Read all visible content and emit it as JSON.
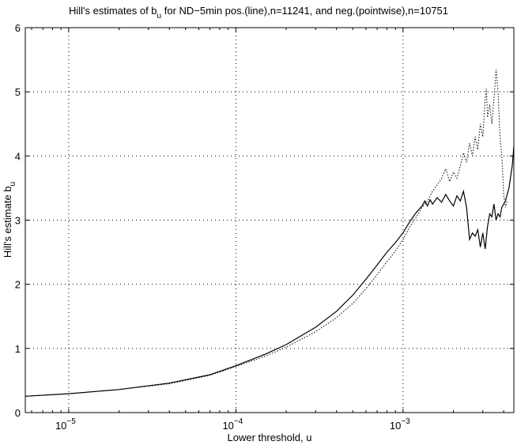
{
  "chart_data": {
    "type": "line",
    "title": {
      "prefix": "Hill's estimates of b",
      "subscript": "u",
      "suffix": " for ND−5min pos.(line),n=11241, and neg.(pointwise),n=10751"
    },
    "xlabel": "Lower threshold, u",
    "ylabel": {
      "main": "Hill's estimate b",
      "subscript": "u"
    },
    "x_scale": "log",
    "xlim": [
      5.5e-06,
      0.0046
    ],
    "ylim": [
      0,
      6
    ],
    "xticks": [
      {
        "value": 1e-05,
        "base": "10",
        "exponent": "−5"
      },
      {
        "value": 0.0001,
        "base": "10",
        "exponent": "−4"
      },
      {
        "value": 0.001,
        "base": "10",
        "exponent": "−3"
      }
    ],
    "yticks": [
      "0",
      "1",
      "2",
      "3",
      "4",
      "5",
      "6"
    ],
    "grid": true,
    "series": [
      {
        "style": "solid",
        "points": [
          [
            5.5e-06,
            0.255
          ],
          [
            1e-05,
            0.295
          ],
          [
            2e-05,
            0.36
          ],
          [
            4e-05,
            0.46
          ],
          [
            7e-05,
            0.59
          ],
          [
            0.0001,
            0.73
          ],
          [
            0.00015,
            0.91
          ],
          [
            0.0002,
            1.06
          ],
          [
            0.0003,
            1.33
          ],
          [
            0.0004,
            1.58
          ],
          [
            0.0005,
            1.83
          ],
          [
            0.0006,
            2.08
          ],
          [
            0.0007,
            2.3
          ],
          [
            0.0008,
            2.5
          ],
          [
            0.0009,
            2.65
          ],
          [
            0.001,
            2.8
          ],
          [
            0.0011,
            2.98
          ],
          [
            0.0012,
            3.12
          ],
          [
            0.0013,
            3.22
          ],
          [
            0.00135,
            3.3
          ],
          [
            0.0014,
            3.22
          ],
          [
            0.00145,
            3.32
          ],
          [
            0.0015,
            3.25
          ],
          [
            0.0016,
            3.35
          ],
          [
            0.0017,
            3.28
          ],
          [
            0.0018,
            3.4
          ],
          [
            0.0019,
            3.3
          ],
          [
            0.002,
            3.22
          ],
          [
            0.0021,
            3.38
          ],
          [
            0.0022,
            3.3
          ],
          [
            0.0023,
            3.45
          ],
          [
            0.0024,
            3.2
          ],
          [
            0.0025,
            2.7
          ],
          [
            0.0026,
            2.8
          ],
          [
            0.0027,
            2.75
          ],
          [
            0.0028,
            2.85
          ],
          [
            0.0029,
            2.58
          ],
          [
            0.003,
            2.8
          ],
          [
            0.0031,
            2.55
          ],
          [
            0.0032,
            2.9
          ],
          [
            0.0033,
            3.1
          ],
          [
            0.0034,
            3.05
          ],
          [
            0.0035,
            3.25
          ],
          [
            0.0036,
            3.0
          ],
          [
            0.0037,
            3.1
          ],
          [
            0.0038,
            3.05
          ],
          [
            0.0039,
            3.2
          ],
          [
            0.0041,
            3.3
          ],
          [
            0.0043,
            3.5
          ],
          [
            0.0045,
            3.85
          ],
          [
            0.0046,
            4.15
          ]
        ]
      },
      {
        "style": "dotted",
        "points": [
          [
            5.5e-06,
            0.255
          ],
          [
            1e-05,
            0.295
          ],
          [
            2e-05,
            0.36
          ],
          [
            4e-05,
            0.45
          ],
          [
            7e-05,
            0.58
          ],
          [
            0.0001,
            0.72
          ],
          [
            0.00015,
            0.88
          ],
          [
            0.0002,
            1.02
          ],
          [
            0.0003,
            1.26
          ],
          [
            0.0004,
            1.48
          ],
          [
            0.0005,
            1.7
          ],
          [
            0.0006,
            1.93
          ],
          [
            0.0007,
            2.15
          ],
          [
            0.0008,
            2.35
          ],
          [
            0.0009,
            2.52
          ],
          [
            0.001,
            2.7
          ],
          [
            0.0011,
            2.9
          ],
          [
            0.0012,
            3.05
          ],
          [
            0.0013,
            3.2
          ],
          [
            0.0014,
            3.3
          ],
          [
            0.0015,
            3.45
          ],
          [
            0.0016,
            3.55
          ],
          [
            0.0017,
            3.65
          ],
          [
            0.0018,
            3.8
          ],
          [
            0.0019,
            3.6
          ],
          [
            0.002,
            3.75
          ],
          [
            0.0021,
            3.65
          ],
          [
            0.0022,
            3.85
          ],
          [
            0.0023,
            4.05
          ],
          [
            0.0024,
            3.9
          ],
          [
            0.0025,
            4.2
          ],
          [
            0.0026,
            4.0
          ],
          [
            0.0027,
            4.3
          ],
          [
            0.0028,
            4.1
          ],
          [
            0.0029,
            4.5
          ],
          [
            0.003,
            4.3
          ],
          [
            0.0031,
            4.9
          ],
          [
            0.00315,
            5.05
          ],
          [
            0.0032,
            4.6
          ],
          [
            0.0033,
            4.8
          ],
          [
            0.0034,
            4.5
          ],
          [
            0.0035,
            4.9
          ],
          [
            0.0036,
            5.35
          ],
          [
            0.0037,
            5.0
          ],
          [
            0.0038,
            4.3
          ],
          [
            0.0039,
            4.0
          ],
          [
            0.004,
            3.4
          ],
          [
            0.0041,
            3.2
          ],
          [
            0.0042,
            3.3
          ]
        ]
      }
    ]
  }
}
